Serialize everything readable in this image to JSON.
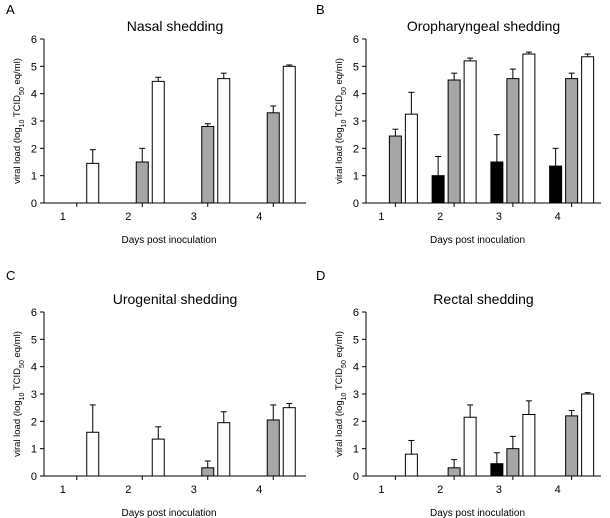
{
  "figure": {
    "ylabel_main": "viral load (log",
    "ylabel_sub1": "10",
    "ylabel_mid": " TCID",
    "ylabel_sub2": "50",
    "ylabel_end": " eq/ml)",
    "xlabel": "Days post inoculation"
  },
  "colors": {
    "black": "#000000",
    "gray": "#a6a6a6",
    "white": "#ffffff"
  },
  "chart_data": [
    {
      "letter": "A",
      "type": "bar",
      "title": "Nasal shedding",
      "categories": [
        "1",
        "2",
        "3",
        "4"
      ],
      "ylim": [
        0,
        6
      ],
      "yticks": [
        "0",
        "1",
        "2",
        "3",
        "4",
        "5",
        "6"
      ],
      "series": [
        {
          "name": "black",
          "color": "#000000",
          "values": [
            0,
            0,
            0,
            0
          ],
          "errors": [
            0,
            0,
            0,
            0
          ]
        },
        {
          "name": "gray",
          "color": "#a6a6a6",
          "values": [
            0,
            1.5,
            2.8,
            3.3
          ],
          "errors": [
            0,
            0.5,
            0.1,
            0.25
          ]
        },
        {
          "name": "white",
          "color": "#ffffff",
          "values": [
            1.45,
            4.45,
            4.55,
            5.0
          ],
          "errors": [
            0.5,
            0.15,
            0.2,
            0.05
          ]
        }
      ]
    },
    {
      "letter": "B",
      "type": "bar",
      "title": "Oropharyngeal shedding",
      "categories": [
        "1",
        "2",
        "3",
        "4"
      ],
      "ylim": [
        0,
        6
      ],
      "yticks": [
        "0",
        "1",
        "2",
        "3",
        "4",
        "5",
        "6"
      ],
      "series": [
        {
          "name": "black",
          "color": "#000000",
          "values": [
            0,
            1.0,
            1.5,
            1.35
          ],
          "errors": [
            0,
            0.7,
            1.0,
            0.65
          ]
        },
        {
          "name": "gray",
          "color": "#a6a6a6",
          "values": [
            2.45,
            4.5,
            4.55,
            4.55
          ],
          "errors": [
            0.25,
            0.25,
            0.35,
            0.2
          ]
        },
        {
          "name": "white",
          "color": "#ffffff",
          "values": [
            3.25,
            5.2,
            5.45,
            5.35
          ],
          "errors": [
            0.8,
            0.1,
            0.07,
            0.1
          ]
        }
      ]
    },
    {
      "letter": "C",
      "type": "bar",
      "title": "Urogenital shedding",
      "categories": [
        "1",
        "2",
        "3",
        "4"
      ],
      "ylim": [
        0,
        6
      ],
      "yticks": [
        "0",
        "1",
        "2",
        "3",
        "4",
        "5",
        "6"
      ],
      "series": [
        {
          "name": "black",
          "color": "#000000",
          "values": [
            0,
            0,
            0,
            0
          ],
          "errors": [
            0,
            0,
            0,
            0
          ]
        },
        {
          "name": "gray",
          "color": "#a6a6a6",
          "values": [
            0,
            0,
            0.3,
            2.05
          ],
          "errors": [
            0,
            0,
            0.25,
            0.55
          ]
        },
        {
          "name": "white",
          "color": "#ffffff",
          "values": [
            1.6,
            1.35,
            1.95,
            2.5
          ],
          "errors": [
            1.0,
            0.45,
            0.4,
            0.15
          ]
        }
      ]
    },
    {
      "letter": "D",
      "type": "bar",
      "title": "Rectal shedding",
      "categories": [
        "1",
        "2",
        "3",
        "4"
      ],
      "ylim": [
        0,
        6
      ],
      "yticks": [
        "0",
        "1",
        "2",
        "3",
        "4",
        "5",
        "6"
      ],
      "series": [
        {
          "name": "black",
          "color": "#000000",
          "values": [
            0,
            0,
            0.45,
            0
          ],
          "errors": [
            0,
            0,
            0.4,
            0
          ]
        },
        {
          "name": "gray",
          "color": "#a6a6a6",
          "values": [
            0,
            0.3,
            1.0,
            2.2
          ],
          "errors": [
            0,
            0.3,
            0.45,
            0.2
          ]
        },
        {
          "name": "white",
          "color": "#ffffff",
          "values": [
            0.8,
            2.15,
            2.25,
            3.0
          ],
          "errors": [
            0.5,
            0.45,
            0.5,
            0.05
          ]
        }
      ]
    }
  ]
}
